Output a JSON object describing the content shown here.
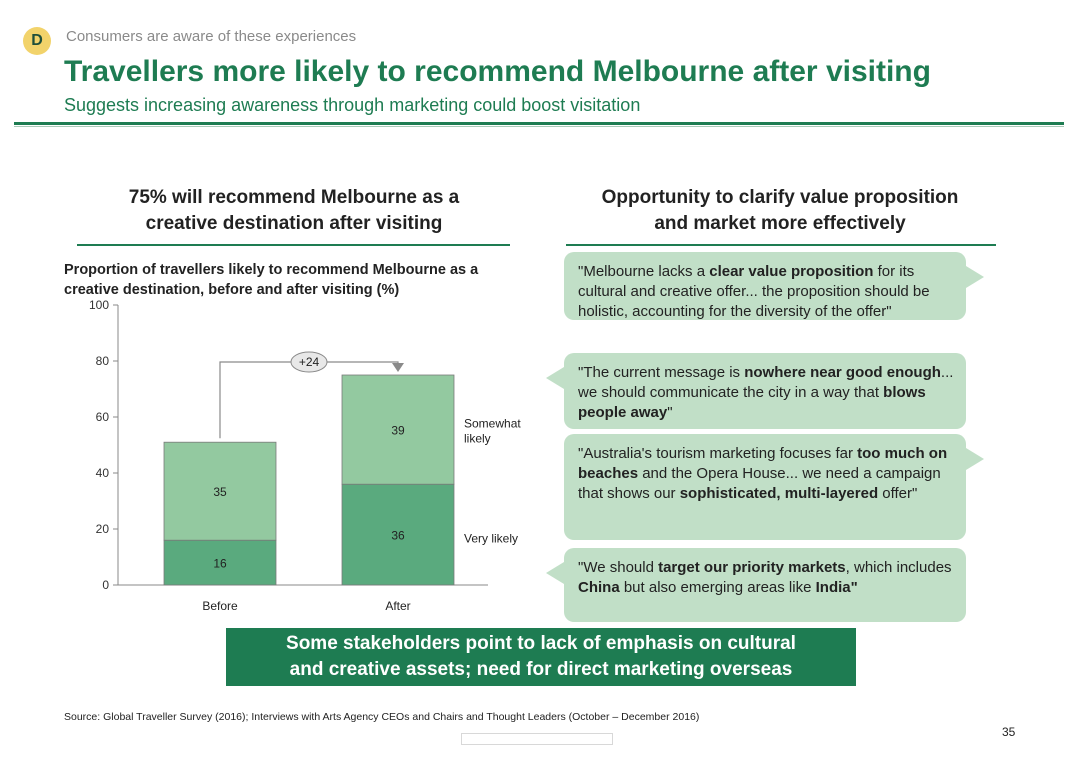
{
  "header": {
    "badge": "D",
    "section_label": "Consumers are aware of these experiences",
    "title": "Travellers more likely to recommend Melbourne after visiting",
    "subtitle": "Suggests increasing awareness through marketing could boost visitation"
  },
  "left": {
    "heading_line1": "75% will recommend Melbourne as a",
    "heading_line2": "creative destination after visiting"
  },
  "right": {
    "heading_line1": "Opportunity to clarify value proposition",
    "heading_line2": "and market more effectively",
    "quotes": [
      {
        "segments": [
          {
            "t": "\"Melbourne lacks a ",
            "b": false
          },
          {
            "t": "clear value proposition",
            "b": true
          },
          {
            "t": " for its cultural and creative offer... the proposition should be holistic, accounting for the diversity of the offer\"",
            "b": false
          }
        ]
      },
      {
        "segments": [
          {
            "t": "\"The current message is ",
            "b": false
          },
          {
            "t": "nowhere near good enough",
            "b": true
          },
          {
            "t": "... we should communicate the city in a way that ",
            "b": false
          },
          {
            "t": "blows people away",
            "b": true
          },
          {
            "t": "\"",
            "b": false
          }
        ]
      },
      {
        "segments": [
          {
            "t": "\"Australia's tourism marketing focuses far ",
            "b": false
          },
          {
            "t": "too much on beaches",
            "b": true
          },
          {
            "t": " and the Opera House... we need a campaign that shows our ",
            "b": false
          },
          {
            "t": "sophisticated, multi-layered",
            "b": true
          },
          {
            "t": " offer\"",
            "b": false
          }
        ]
      },
      {
        "segments": [
          {
            "t": "\"We should ",
            "b": false
          },
          {
            "t": "target our priority markets",
            "b": true
          },
          {
            "t": ", which includes ",
            "b": false
          },
          {
            "t": "China",
            "b": true
          },
          {
            "t": " but also emerging areas like ",
            "b": false
          },
          {
            "t": "India\"",
            "b": true
          }
        ]
      }
    ]
  },
  "chart_data": {
    "type": "bar",
    "stacked": true,
    "title": "Proportion of travellers likely to recommend Melbourne as a creative destination, before and after visiting (%)",
    "categories": [
      "Before",
      "After"
    ],
    "series": [
      {
        "name": "Very likely",
        "values": [
          16,
          36
        ],
        "color": "#5aaa7e"
      },
      {
        "name": "Somewhat likely",
        "values": [
          35,
          39
        ],
        "color": "#93c9a0"
      }
    ],
    "ylim": [
      0,
      100
    ],
    "yticks": [
      "0",
      "20",
      "40",
      "60",
      "80",
      "100"
    ],
    "annotation": "+24",
    "legend_placement": "right of bars"
  },
  "callout": {
    "line1": "Some stakeholders point to lack of emphasis on cultural",
    "line2": "and creative assets; need for direct marketing overseas"
  },
  "footer": {
    "source": "Source: Global Traveller Survey (2016); Interviews with  Arts Agency CEOs and Chairs and Thought Leaders (October – December 2016)",
    "page": "35"
  }
}
